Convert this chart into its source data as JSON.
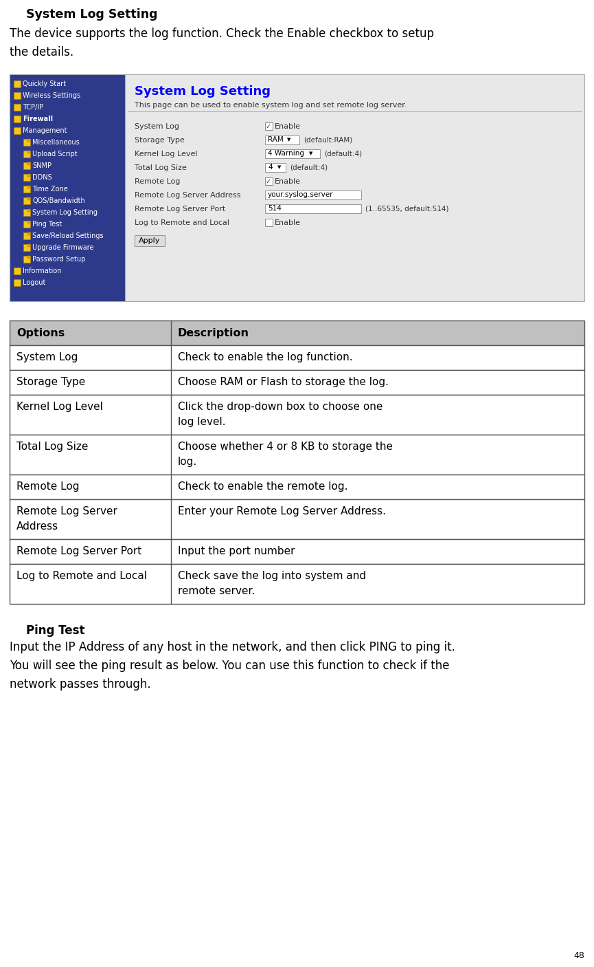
{
  "page_bg": "#ffffff",
  "title_section": "System Log Setting",
  "intro_text": "The device supports the log function. Check the Enable checkbox to setup\nthe details.",
  "screenshot_nav_bg": "#2d3a8c",
  "screenshot_content_bg": "#e8e8e8",
  "screenshot_title": "System Log Setting",
  "screenshot_title_color": "#0000ff",
  "screenshot_subtitle": "This page can be used to enable system log and set remote log server.",
  "nav_items": [
    {
      "text": "Quickly Start",
      "indent": 0,
      "bold": false
    },
    {
      "text": "Wireless Settings",
      "indent": 0,
      "bold": false
    },
    {
      "text": "TCP/IP",
      "indent": 0,
      "bold": false
    },
    {
      "text": "Firewall",
      "indent": 0,
      "bold": true
    },
    {
      "text": "Management",
      "indent": 0,
      "bold": false
    },
    {
      "text": "Miscellaneous",
      "indent": 1,
      "bold": false
    },
    {
      "text": "Upload Script",
      "indent": 1,
      "bold": false
    },
    {
      "text": "SNMP",
      "indent": 1,
      "bold": false
    },
    {
      "text": "DDNS",
      "indent": 1,
      "bold": false
    },
    {
      "text": "Time Zone",
      "indent": 1,
      "bold": false
    },
    {
      "text": "QOS/Bandwidth",
      "indent": 1,
      "bold": false
    },
    {
      "text": "System Log Setting",
      "indent": 1,
      "bold": false
    },
    {
      "text": "Ping Test",
      "indent": 1,
      "bold": false
    },
    {
      "text": "Save/Reload Settings",
      "indent": 1,
      "bold": false
    },
    {
      "text": "Upgrade Firmware",
      "indent": 1,
      "bold": false
    },
    {
      "text": "Password Setup",
      "indent": 1,
      "bold": false
    },
    {
      "text": "Information",
      "indent": 0,
      "bold": false
    },
    {
      "text": "Logout",
      "indent": 0,
      "bold": false
    }
  ],
  "form_rows": [
    {
      "label": "System Log",
      "type": "checkbox_checked"
    },
    {
      "label": "Storage Type",
      "type": "dropdown_ram"
    },
    {
      "label": "Kernel Log Level",
      "type": "dropdown_warning"
    },
    {
      "label": "Total Log Size",
      "type": "dropdown_4"
    },
    {
      "label": "Remote Log",
      "type": "checkbox_checked"
    },
    {
      "label": "Remote Log Server Address",
      "type": "textbox",
      "value": "your.syslog.server"
    },
    {
      "label": "Remote Log Server Port",
      "type": "textbox_port",
      "value": "514",
      "note": "(1..65535, default:514)"
    },
    {
      "label": "Log to Remote and Local",
      "type": "checkbox_unchecked"
    }
  ],
  "table_header": [
    "Options",
    "Description"
  ],
  "table_header_bg": "#c0c0c0",
  "table_rows": [
    [
      "System Log",
      "Check to enable the log function."
    ],
    [
      "Storage Type",
      "Choose RAM or Flash to storage the log."
    ],
    [
      "Kernel Log Level",
      "Click the drop-down box to choose one\nlog level."
    ],
    [
      "Total Log Size",
      "Choose whether 4 or 8 KB to storage the\nlog."
    ],
    [
      "Remote Log",
      "Check to enable the remote log."
    ],
    [
      "Remote Log Server\nAddress",
      "Enter your Remote Log Server Address."
    ],
    [
      "Remote Log Server Port",
      "Input the port number"
    ],
    [
      "Log to Remote and Local",
      "Check save the log into system and\nremote server."
    ]
  ],
  "ping_title": "Ping Test",
  "ping_text": "Input the IP Address of any host in the network, and then click PING to ping it.\nYou will see the ping result as below. You can use this function to check if the\nnetwork passes through.",
  "page_number": "48"
}
